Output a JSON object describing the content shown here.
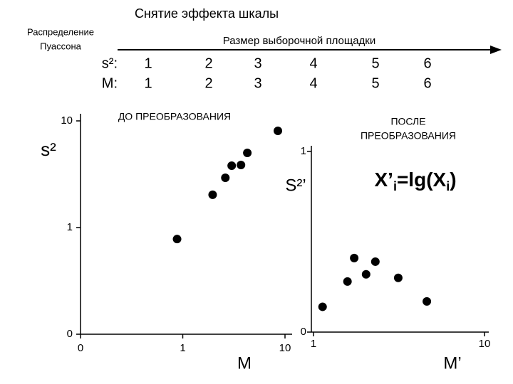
{
  "title": "Снятие эффекта шкалы",
  "side_label": [
    "Распределение",
    "Пуассона"
  ],
  "arrow_label": "Размер выборочной площадки",
  "table": {
    "rows": [
      [
        "s²:",
        1,
        2,
        3,
        4,
        5,
        6
      ],
      [
        "M:",
        1,
        2,
        3,
        4,
        5,
        6
      ]
    ]
  },
  "chart_data": [
    {
      "type": "scatter",
      "title": [
        "ДО ПРЕОБРАЗОВАНИЯ"
      ],
      "xlabel": "M",
      "ylabel": "s²",
      "x": [
        0.88,
        1.96,
        2.61,
        3.01,
        3.71,
        4.28,
        8.52
      ],
      "values": [
        0.78,
        2.03,
        2.93,
        3.8,
        3.86,
        5.01,
        8.07
      ],
      "color": "#000000",
      "xscale": "log",
      "yscale": "log",
      "xlim": [
        0.1,
        10
      ],
      "ylim": [
        0.1,
        10
      ],
      "xticks": [
        {
          "value": 0.1,
          "label": "0"
        },
        1,
        10
      ],
      "yticks": [
        {
          "value": 0.1,
          "label": "0"
        },
        1,
        10
      ]
    },
    {
      "type": "scatter",
      "title": [
        "ПОСЛЕ",
        "ПРЕОБРАЗОВАНИЯ"
      ],
      "xlabel": "M’",
      "ylabel": "S²’",
      "annotation": [
        "X’",
        "i",
        "=lg(X",
        "i",
        ")"
      ],
      "annotation_color": "#cc0000",
      "x": [
        1.13,
        1.58,
        1.73,
        2.03,
        2.3,
        3.13,
        4.6
      ],
      "values": [
        0.14,
        0.28,
        0.41,
        0.32,
        0.39,
        0.3,
        0.17
      ],
      "color": "#000000",
      "xscale": "log",
      "yscale": "linear",
      "xlim": [
        1,
        10
      ],
      "ylim": [
        0,
        1
      ],
      "xticks": [
        1,
        10
      ],
      "yticks": [
        0,
        1
      ]
    }
  ]
}
